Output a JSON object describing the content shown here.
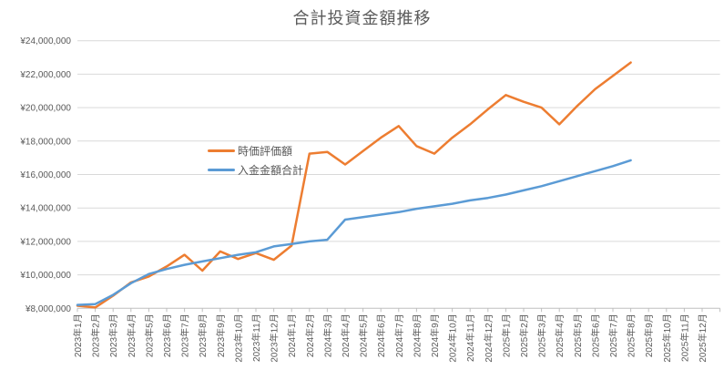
{
  "chart_data": {
    "type": "line",
    "title": "合計投資金額推移",
    "categories": [
      "2023年1月",
      "2023年2月",
      "2023年3月",
      "2023年4月",
      "2023年5月",
      "2023年6月",
      "2023年7月",
      "2023年8月",
      "2023年9月",
      "2023年10月",
      "2023年11月",
      "2023年12月",
      "2024年1月",
      "2024年2月",
      "2024年3月",
      "2024年4月",
      "2024年5月",
      "2024年6月",
      "2024年7月",
      "2024年8月",
      "2024年9月",
      "2024年10月",
      "2024年11月",
      "2024年12月",
      "2025年1月",
      "2025年2月",
      "2025年3月",
      "2025年4月",
      "2025年5月",
      "2025年6月",
      "2025年7月",
      "2025年8月",
      "2025年9月",
      "2025年10月",
      "2025年11月",
      "2025年12月"
    ],
    "series": [
      {
        "name": "時価評価額",
        "color": "#ED7D31",
        "values": [
          8150000,
          8050000,
          8750000,
          9550000,
          9900000,
          10500000,
          11200000,
          10250000,
          11400000,
          10950000,
          11300000,
          10900000,
          11750000,
          17250000,
          17350000,
          16600000,
          17400000,
          18200000,
          18900000,
          17700000,
          17250000,
          18200000,
          19000000,
          19900000,
          20750000,
          20350000,
          20000000,
          19000000,
          20100000,
          21100000,
          21900000,
          22700000,
          null,
          null,
          null,
          null
        ]
      },
      {
        "name": "入金金額合計",
        "color": "#5B9BD5",
        "values": [
          8200000,
          8250000,
          8800000,
          9500000,
          10050000,
          10350000,
          10600000,
          10800000,
          11000000,
          11200000,
          11350000,
          11700000,
          11850000,
          12000000,
          12100000,
          13300000,
          13450000,
          13600000,
          13750000,
          13950000,
          14100000,
          14250000,
          14450000,
          14600000,
          14800000,
          15050000,
          15300000,
          15600000,
          15900000,
          16200000,
          16500000,
          16850000,
          null,
          null,
          null,
          null
        ]
      }
    ],
    "ylim": [
      8000000,
      24000000
    ],
    "ytick_step": 2000000,
    "y_tick_labels": [
      "¥8,000,000",
      "¥10,000,000",
      "¥12,000,000",
      "¥14,000,000",
      "¥16,000,000",
      "¥18,000,000",
      "¥20,000,000",
      "¥22,000,000",
      "¥24,000,000"
    ],
    "grid": "horizontal",
    "legend_position": "inside-left-center",
    "gridline_color": "#D9D9D9",
    "axis_color": "#BFBFBF",
    "text_color": "#595959",
    "title_color": "#595959"
  }
}
